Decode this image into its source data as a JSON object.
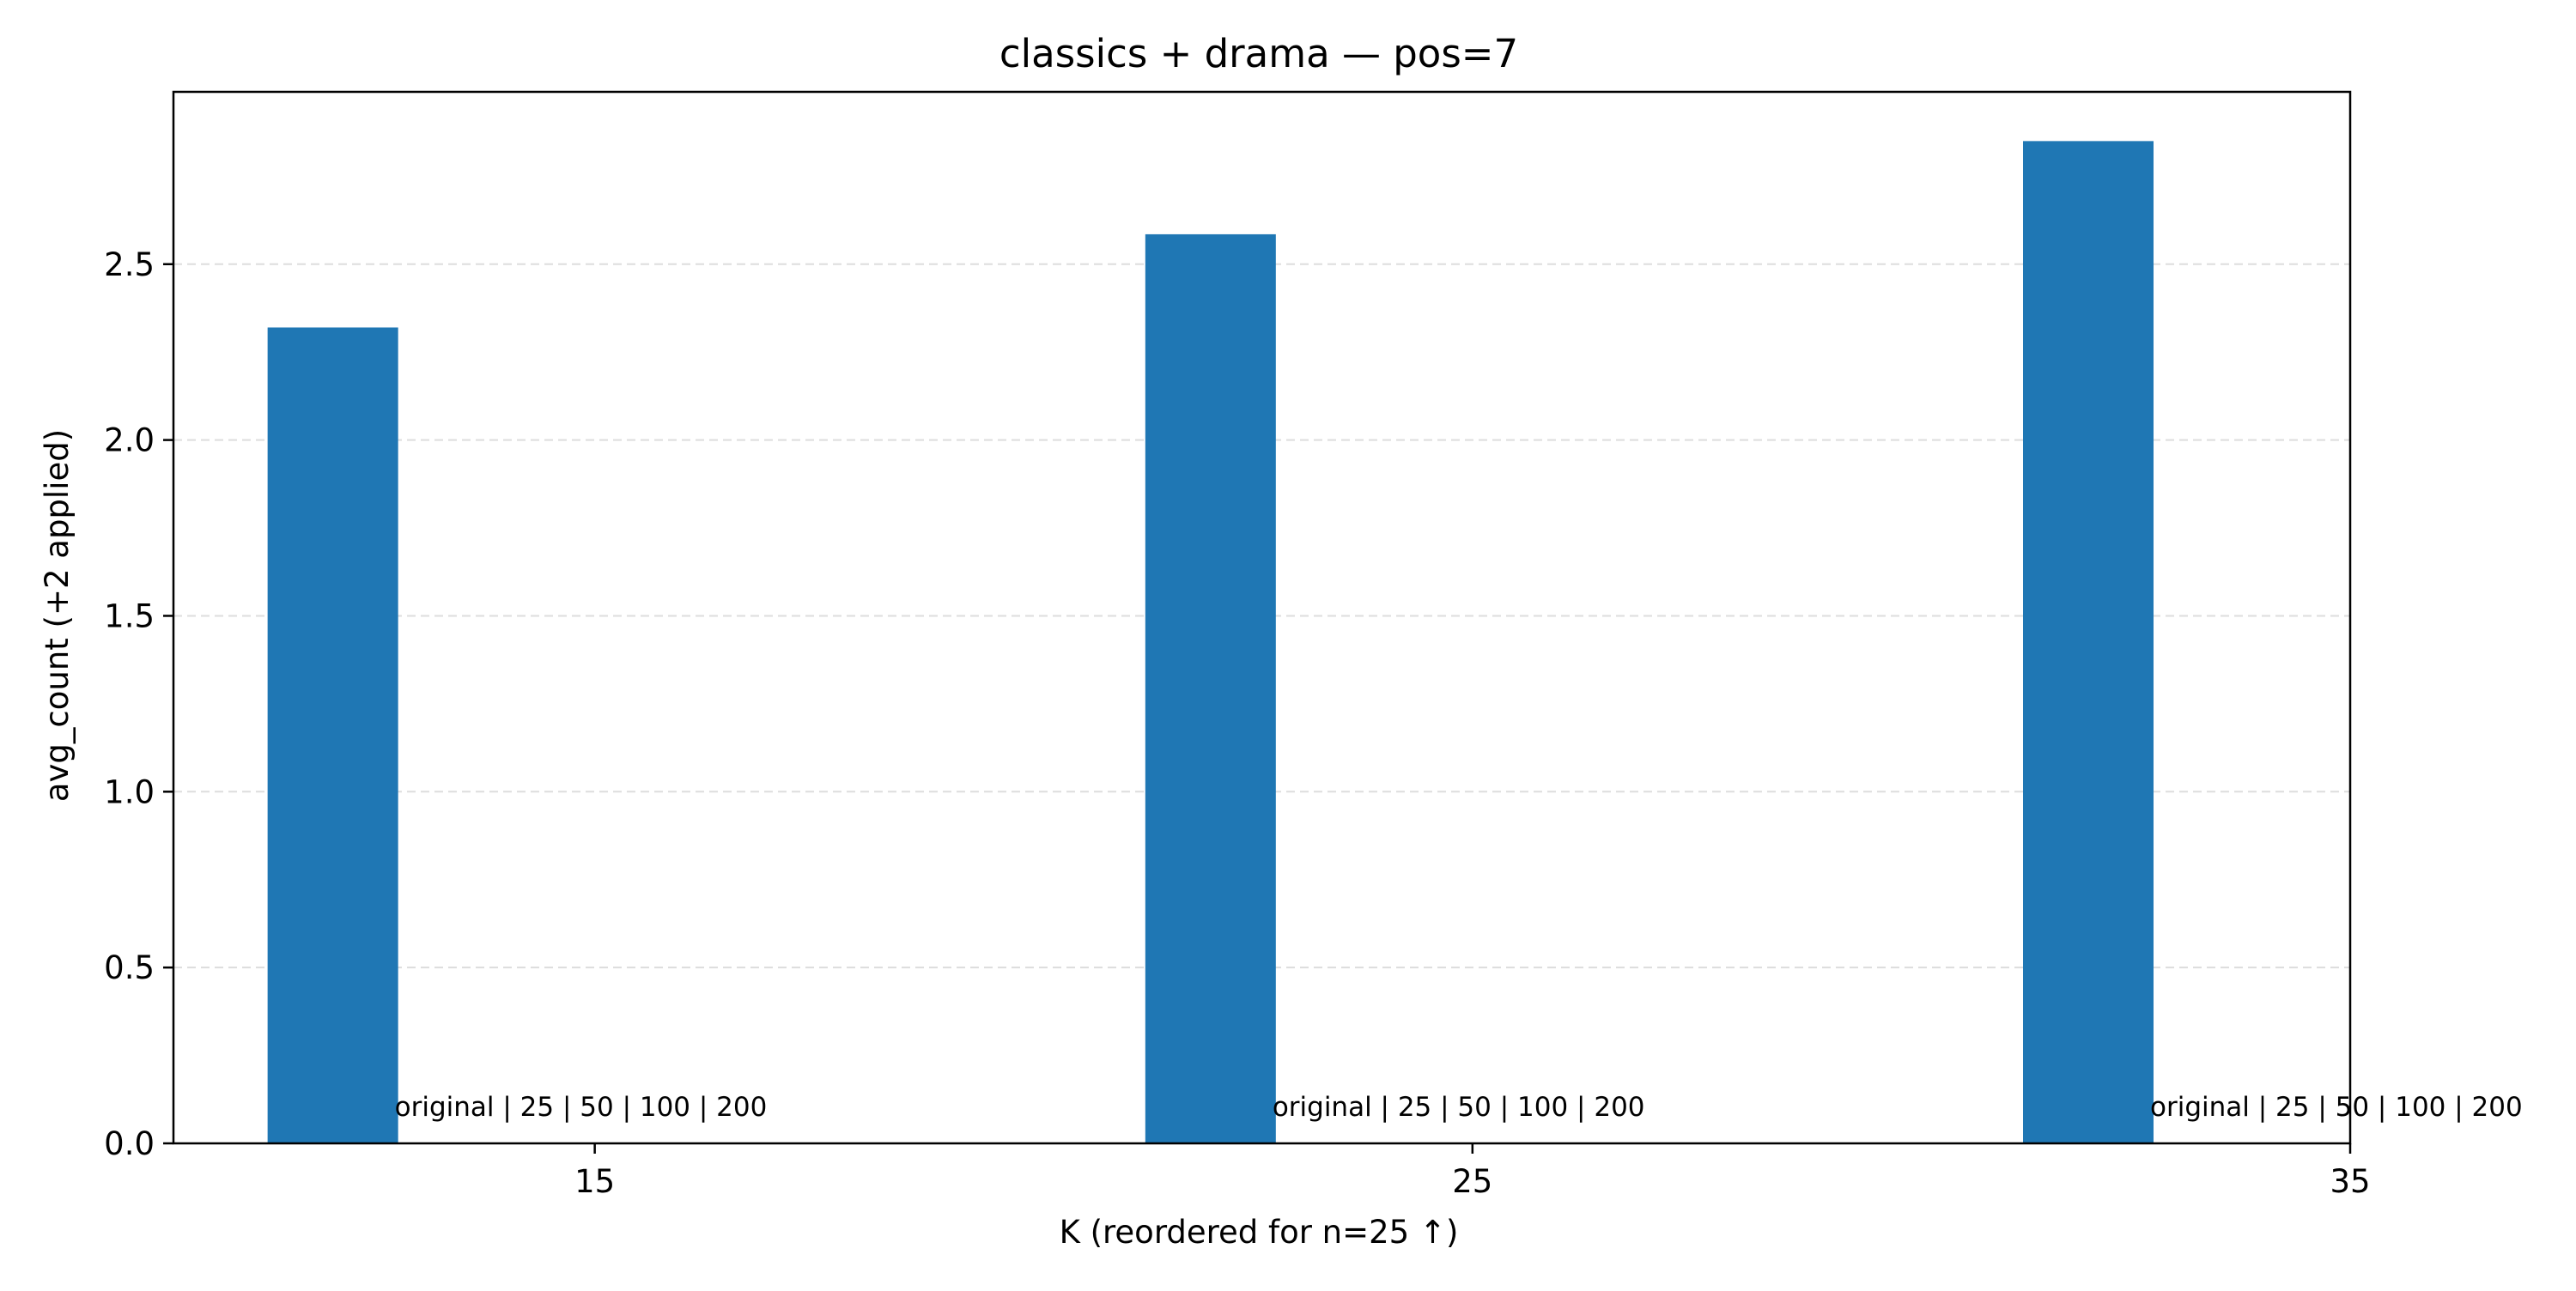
{
  "chart_data": {
    "type": "bar",
    "title": "classics + drama — pos=7",
    "xlabel": "K (reordered for n=25 ↑)",
    "ylabel": "avg_count (+2 applied)",
    "x_ticks": [
      15,
      25,
      35
    ],
    "x_tick_labels": [
      "15",
      "25",
      "35"
    ],
    "xlim": [
      10.2,
      35
    ],
    "y_ticks": [
      0.0,
      0.5,
      1.0,
      1.5,
      2.0,
      2.5
    ],
    "y_tick_labels": [
      "0.0",
      "0.5",
      "1.0",
      "1.5",
      "2.0",
      "2.5"
    ],
    "ylim": [
      0,
      2.99
    ],
    "grid": "y-dashed",
    "bar_color": "#1f77b4",
    "grid_color": "#dddddd",
    "bars": [
      {
        "x": 15,
        "value": 2.32,
        "annotation": "original | 25 | 50 | 100 | 200"
      },
      {
        "x": 25,
        "value": 2.585,
        "annotation": "original | 25 | 50 | 100 | 200"
      },
      {
        "x": 35,
        "value": 2.85,
        "annotation": "original | 25 | 50 | 100 | 200"
      }
    ]
  }
}
